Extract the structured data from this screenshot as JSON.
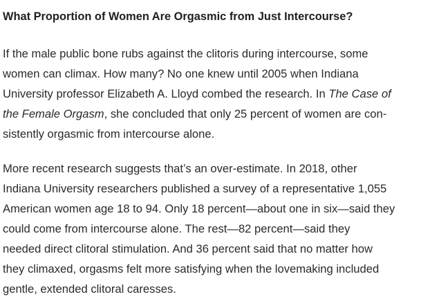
{
  "article": {
    "heading": "What Proportion of Women Are Orgasmic from Just Intercourse?",
    "paragraph1": {
      "line1": "If the male public bone rubs against the clitoris during intercourse, some",
      "line2": "women can climax. How many? No one knew until 2005 when Indiana",
      "line3_pre": "University professor Elizabeth A. Lloyd combed the research. In ",
      "line3_em": "The Case of",
      "line4_em": "the Female Orgasm",
      "line4_post": ", she concluded that only 25 percent of women are con-",
      "line5": "sistently orgasmic from intercourse alone."
    },
    "paragraph2": {
      "lines": [
        "More recent research suggests that’s an over-estimate. In 2018, other",
        "Indiana University researchers published a survey of a representative 1,055",
        "American women age 18 to 94. Only 18 percent—about one in six—said they",
        "could come from intercourse alone. The rest—82 percent—said they",
        "needed direct clitoral stimulation. And 36 percent said that no matter how",
        "they climaxed, orgasms felt more satisfying when the lovemaking included",
        "gentle, extended clitoral caresses."
      ]
    }
  }
}
